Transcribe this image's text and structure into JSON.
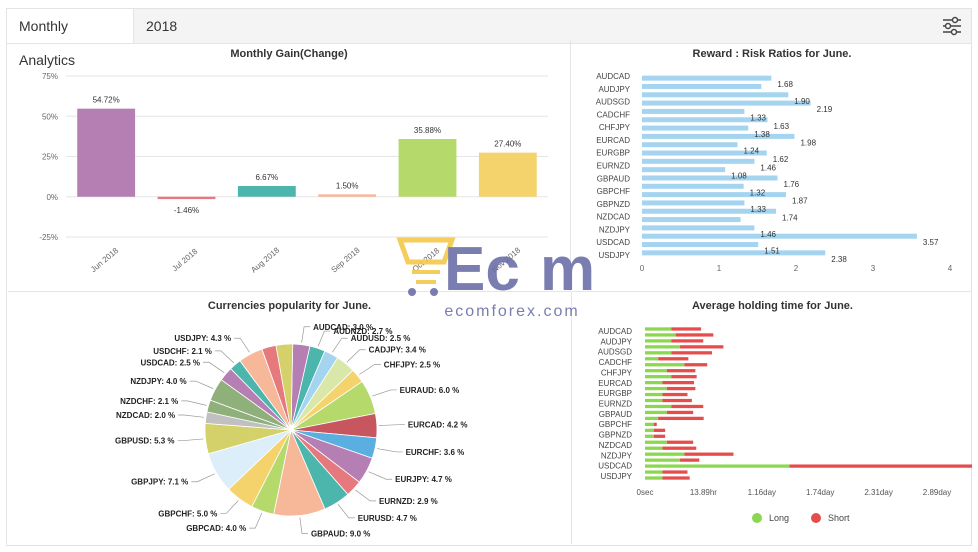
{
  "header": {
    "tab_active": "Monthly Analytics",
    "tab_year": "2018"
  },
  "watermark": {
    "text": "ecomforex.com"
  },
  "colors": {
    "blue": "#a4d4f0",
    "long": "#8bd74f",
    "short": "#e74c4c"
  },
  "charts": [
    {
      "type": "bar",
      "title": "Monthly Gain(Change)",
      "categories": [
        "Jun 2018",
        "Jul 2018",
        "Aug 2018",
        "Sep 2018",
        "Oct 2018",
        "Nov 2018"
      ],
      "values": [
        54.72,
        -1.46,
        6.67,
        1.5,
        35.88,
        27.4
      ],
      "labels": [
        "54.72%",
        "-1.46%",
        "6.67%",
        "1.50%",
        "35.88%",
        "27.40%"
      ],
      "colors": [
        "#b67fb3",
        "#e6797e",
        "#4db6ac",
        "#f7b89a",
        "#b5d96a",
        "#f5d36c"
      ],
      "ylim": [
        -25,
        75
      ],
      "yticks": [
        -25,
        0,
        25,
        50,
        75
      ],
      "ytick_labels": [
        "-25%",
        "0%",
        "25%",
        "50%",
        "75%"
      ]
    },
    {
      "type": "bar",
      "title": "Reward : Risk Ratios for June.",
      "categories": [
        "AUDCAD",
        "AUDJPY",
        "AUDSGD",
        "CADCHF",
        "CHFJPY",
        "EURCAD",
        "EURGBP",
        "EURNZD",
        "GBPAUD",
        "GBPCHF",
        "GBPNZD",
        "NZDCAD",
        "NZDJPY",
        "USDCAD",
        "USDJPY"
      ],
      "bars": [
        1.68,
        1.55,
        1.9,
        2.19,
        1.33,
        1.63,
        1.38,
        1.98,
        1.24,
        1.62,
        1.46,
        1.08,
        1.76,
        1.32,
        1.87,
        1.33,
        1.74,
        1.28,
        1.46,
        3.57,
        1.51,
        2.38
      ],
      "data_labels": [
        "1.68",
        "1.90",
        "2.19",
        "1.33",
        "1.63",
        "1.38",
        "1.98",
        "1.24",
        "1.62",
        "1.46",
        "1.08",
        "1.76",
        "1.32",
        "1.87",
        "1.33",
        "1.74",
        "1.46",
        "3.57",
        "1.51",
        "2.38"
      ],
      "xlim": [
        0,
        4
      ],
      "xticks": [
        "0",
        "1",
        "2",
        "3",
        "4"
      ]
    },
    {
      "type": "pie",
      "title": "Currencies popularity for June.",
      "slices": [
        {
          "label": "AUDCAD: 3.0 %",
          "value": 3.0,
          "color": "#b67fb3"
        },
        {
          "label": "AUDNZD: 2.7 %",
          "value": 2.7,
          "color": "#4db6ac"
        },
        {
          "label": "AUDUSD: 2.5 %",
          "value": 2.5,
          "color": "#a4d4f0"
        },
        {
          "label": "CADJPY: 3.4 %",
          "value": 3.4,
          "color": "#d9e8a8"
        },
        {
          "label": "CHFJPY: 2.5 %",
          "value": 2.5,
          "color": "#f5d36c"
        },
        {
          "label": "EURAUD: 6.0 %",
          "value": 6.0,
          "color": "#b5d96a"
        },
        {
          "label": "EURCAD: 4.2 %",
          "value": 4.2,
          "color": "#c8565e"
        },
        {
          "label": "EURCHF: 3.6 %",
          "value": 3.6,
          "color": "#5aaee0"
        },
        {
          "label": "EURJPY: 4.7 %",
          "value": 4.7,
          "color": "#b67fb3"
        },
        {
          "label": "EURNZD: 2.9 %",
          "value": 2.9,
          "color": "#e6797e"
        },
        {
          "label": "EURUSD: 4.7 %",
          "value": 4.7,
          "color": "#4db6ac"
        },
        {
          "label": "GBPAUD: 9.0 %",
          "value": 9.0,
          "color": "#f7b89a"
        },
        {
          "label": "GBPCAD: 4.0 %",
          "value": 4.0,
          "color": "#b5d96a"
        },
        {
          "label": "GBPCHF: 5.0 %",
          "value": 5.0,
          "color": "#f5d36c"
        },
        {
          "label": "GBPJPY: 7.1 %",
          "value": 7.1,
          "color": "#dceefa"
        },
        {
          "label": "GBPUSD: 5.3 %",
          "value": 5.3,
          "color": "#d4d06a"
        },
        {
          "label": "NZDCAD: 2.0 %",
          "value": 2.0,
          "color": "#c0c0c0"
        },
        {
          "label": "NZDCHF: 2.1 %",
          "value": 2.1,
          "color": "#8fb07a"
        },
        {
          "label": "NZDJPY: 4.0 %",
          "value": 4.0,
          "color": "#8fb07a"
        },
        {
          "label": "USDCAD: 2.5 %",
          "value": 2.5,
          "color": "#b67fb3"
        },
        {
          "label": "USDCHF: 2.1 %",
          "value": 2.1,
          "color": "#4db6ac"
        },
        {
          "label": "USDJPY: 4.3 %",
          "value": 4.3,
          "color": "#f7b89a"
        },
        {
          "label": "",
          "value": 2.5,
          "color": "#e6797e"
        },
        {
          "label": "",
          "value": 2.9,
          "color": "#d4d06a"
        }
      ]
    },
    {
      "type": "bar",
      "title": "Average holding time for June.",
      "categories": [
        "AUDCAD",
        "AUDJPY",
        "AUDSGD",
        "CADCHF",
        "CHFJPY",
        "EURCAD",
        "EURGBP",
        "EURNZD",
        "GBPAUD",
        "GBPCHF",
        "GBPNZD",
        "NZDCAD",
        "NZDJPY",
        "USDCAD",
        "USDJPY"
      ],
      "long_hours": [
        6,
        7,
        6,
        8,
        6,
        3,
        9,
        5,
        6,
        4,
        5,
        4,
        4,
        6,
        5,
        3,
        2,
        2,
        2,
        5,
        4,
        9,
        8,
        33,
        4,
        4
      ],
      "short_hours": [
        16,
        20,
        17,
        23,
        21,
        15,
        14,
        15,
        14,
        16,
        15,
        13,
        15,
        17,
        14,
        22,
        2,
        6,
        6,
        14,
        17,
        26,
        12,
        112,
        13,
        14
      ],
      "xticks": [
        "0sec",
        "13.89hr",
        "1.16day",
        "1.74day",
        "2.31day",
        "2.89day"
      ],
      "legend": [
        {
          "name": "Long"
        },
        {
          "name": "Short"
        }
      ]
    }
  ]
}
